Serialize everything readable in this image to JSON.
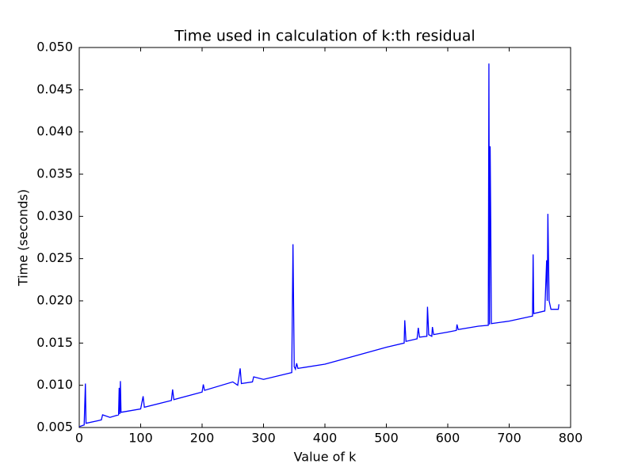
{
  "chart_data": {
    "type": "line",
    "title": "Time used in calculation of k:th residual",
    "x_label": "Value of k",
    "y_label": "Time (seconds)",
    "color": "#0000ff",
    "x": [
      0,
      8,
      10,
      11,
      30,
      36,
      38,
      50,
      64,
      65,
      66,
      67,
      68,
      100,
      104,
      106,
      150,
      152,
      154,
      200,
      202,
      204,
      250,
      258,
      262,
      264,
      282,
      284,
      300,
      346,
      348,
      350,
      352,
      354,
      356,
      400,
      450,
      500,
      529,
      530,
      532,
      550,
      552,
      554,
      566,
      567,
      569,
      574,
      575,
      577,
      600,
      614,
      615,
      617,
      650,
      666,
      667,
      668,
      669,
      670,
      671,
      700,
      738,
      739,
      740,
      758,
      761,
      762,
      763,
      765,
      768,
      780,
      781
    ],
    "values": [
      0.0051,
      0.0053,
      0.0102,
      0.0055,
      0.0058,
      0.0059,
      0.0065,
      0.0062,
      0.0065,
      0.0097,
      0.0066,
      0.0105,
      0.0068,
      0.0072,
      0.0087,
      0.0074,
      0.0082,
      0.0095,
      0.0083,
      0.0092,
      0.0101,
      0.0094,
      0.0104,
      0.01,
      0.012,
      0.0102,
      0.0104,
      0.011,
      0.0107,
      0.0115,
      0.0267,
      0.0122,
      0.0119,
      0.0126,
      0.012,
      0.0125,
      0.0135,
      0.0145,
      0.015,
      0.0177,
      0.0152,
      0.0155,
      0.0168,
      0.0157,
      0.0158,
      0.0193,
      0.016,
      0.0158,
      0.0169,
      0.016,
      0.0163,
      0.0165,
      0.0172,
      0.0166,
      0.017,
      0.0171,
      0.0481,
      0.0172,
      0.0383,
      0.0292,
      0.0173,
      0.0176,
      0.0182,
      0.0255,
      0.0185,
      0.0188,
      0.0248,
      0.02,
      0.0303,
      0.02,
      0.019,
      0.019,
      0.0196
    ],
    "xlim": [
      0,
      800
    ],
    "xticks": [
      0,
      100,
      200,
      300,
      400,
      500,
      600,
      700,
      800
    ],
    "ylim": [
      0.005,
      0.05
    ],
    "yticks": [
      0.005,
      {
        "value": 0.01,
        "label": "0.010"
      },
      0.015,
      {
        "value": 0.02,
        "label": "0.020"
      },
      0.025,
      {
        "value": 0.03,
        "label": "0.030"
      },
      0.035,
      {
        "value": 0.04,
        "label": "0.040"
      },
      0.045,
      {
        "value": 0.05,
        "label": "0.050"
      }
    ]
  }
}
